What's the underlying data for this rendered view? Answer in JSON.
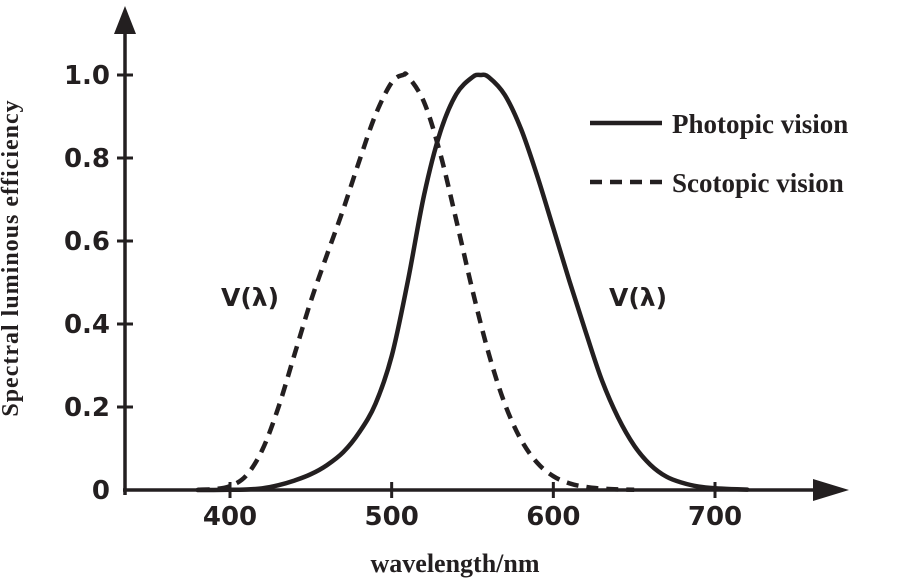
{
  "figure": {
    "background_color": "#ffffff",
    "line_color": "#231f20"
  },
  "chart_data": {
    "type": "line",
    "title": "",
    "xlabel": "wavelength/nm",
    "ylabel": "Spectral luminous efficiency",
    "xlim": [
      340,
      760
    ],
    "ylim": [
      0,
      1.08
    ],
    "x_ticks": [
      "400",
      "500",
      "600",
      "700"
    ],
    "y_ticks": [
      "0",
      "0.2",
      "0.4",
      "0.6",
      "0.8",
      "1.0"
    ],
    "grid": false,
    "legend_position": "top-right",
    "series": [
      {
        "name": "Photopic vision",
        "style": "solid",
        "curve_label": "V(λ)",
        "peak_nm": 555,
        "x": [
          380,
          390,
          400,
          410,
          420,
          430,
          440,
          450,
          460,
          470,
          480,
          490,
          500,
          510,
          520,
          530,
          540,
          550,
          555,
          560,
          570,
          580,
          590,
          600,
          610,
          620,
          630,
          640,
          650,
          660,
          670,
          680,
          690,
          700,
          710,
          720
        ],
        "values": [
          0.0,
          0.0001,
          0.0004,
          0.0012,
          0.004,
          0.0116,
          0.023,
          0.038,
          0.06,
          0.091,
          0.139,
          0.208,
          0.323,
          0.503,
          0.71,
          0.862,
          0.954,
          0.995,
          1.0,
          0.995,
          0.952,
          0.87,
          0.757,
          0.631,
          0.503,
          0.381,
          0.265,
          0.175,
          0.107,
          0.061,
          0.032,
          0.017,
          0.0082,
          0.0041,
          0.0021,
          0.001
        ]
      },
      {
        "name": "Scotopic vision",
        "style": "dashed",
        "curve_label": "V(λ)",
        "peak_nm": 507,
        "x": [
          380,
          390,
          400,
          410,
          420,
          430,
          440,
          450,
          460,
          470,
          480,
          490,
          500,
          507,
          510,
          520,
          530,
          540,
          550,
          560,
          570,
          580,
          590,
          600,
          610,
          620,
          630,
          640,
          650
        ],
        "values": [
          0.0006,
          0.0022,
          0.0093,
          0.0348,
          0.0966,
          0.1998,
          0.3281,
          0.455,
          0.567,
          0.676,
          0.793,
          0.904,
          0.982,
          1.0,
          0.997,
          0.935,
          0.811,
          0.65,
          0.481,
          0.3288,
          0.2076,
          0.1212,
          0.0655,
          0.0332,
          0.0159,
          0.0074,
          0.0033,
          0.0015,
          0.0007
        ]
      }
    ]
  }
}
